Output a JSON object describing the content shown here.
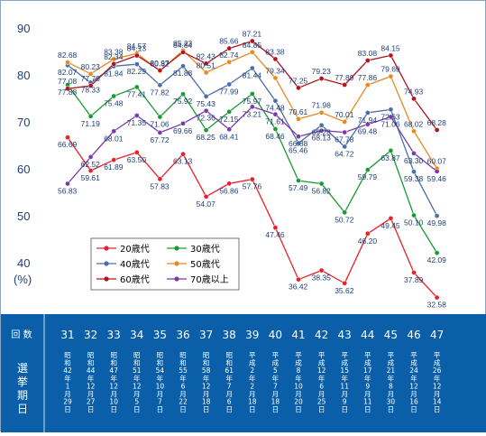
{
  "chart_data": {
    "type": "line",
    "ylabel": "(%)",
    "ylim": [
      30,
      90
    ],
    "yticks": [
      40,
      50,
      60,
      70,
      80,
      90
    ],
    "grid": false,
    "legend_position": "lower-left",
    "categories": [
      "31",
      "32",
      "33",
      "34",
      "35",
      "36",
      "37",
      "38",
      "39",
      "40",
      "41",
      "42",
      "43",
      "44",
      "45",
      "46",
      "47"
    ],
    "series": [
      {
        "name": "20歳代",
        "color": "#e8202a",
        "values": [
          66.69,
          59.61,
          61.89,
          63.5,
          57.83,
          63.13,
          54.07,
          56.86,
          57.76,
          47.46,
          36.42,
          38.35,
          35.62,
          46.2,
          49.45,
          37.89,
          32.58
        ]
      },
      {
        "name": "30歳代",
        "color": "#1a9a33",
        "values": [
          77.88,
          71.19,
          75.48,
          77.41,
          71.06,
          75.92,
          68.25,
          72.15,
          75.97,
          68.46,
          57.49,
          56.82,
          50.72,
          59.79,
          63.87,
          50.1,
          42.09
        ]
      },
      {
        "name": "40歳代",
        "color": "#4a6ea8",
        "values": [
          82.07,
          78.33,
          81.84,
          82.29,
          77.82,
          81.88,
          75.43,
          77.99,
          81.44,
          74.48,
          65.46,
          69.28,
          64.72,
          71.94,
          72.63,
          59.38,
          49.98
        ]
      },
      {
        "name": "50歳代",
        "color": "#e88a20",
        "values": [
          82.68,
          80.23,
          83.38,
          84.57,
          80.82,
          85.23,
          80.51,
          82.74,
          84.85,
          79.34,
          70.61,
          71.98,
          70.01,
          77.86,
          79.69,
          68.02,
          60.07
        ]
      },
      {
        "name": "60歳代",
        "color": "#b0151e",
        "values": [
          77.08,
          77.7,
          82.34,
          84.13,
          80.97,
          84.84,
          82.43,
          85.66,
          87.21,
          83.38,
          77.25,
          79.23,
          77.89,
          83.08,
          84.15,
          74.93,
          68.28
        ]
      },
      {
        "name": "70歳以上",
        "color": "#7a3aa8",
        "values": [
          56.83,
          62.52,
          68.01,
          71.35,
          67.72,
          69.66,
          72.36,
          68.41,
          73.21,
          71.61,
          66.88,
          68.13,
          67.78,
          69.48,
          71.06,
          63.3,
          59.46
        ]
      }
    ],
    "label_color": "#1f3f7a"
  },
  "table": {
    "row1_label": "回数",
    "row2_label": "選挙期日",
    "kaisu": [
      "31",
      "32",
      "33",
      "34",
      "35",
      "36",
      "37",
      "38",
      "39",
      "40",
      "41",
      "42",
      "43",
      "44",
      "45",
      "46",
      "47"
    ],
    "dates": [
      "昭和42年1月29日",
      "昭和44年12月27日",
      "昭和47年12月10日",
      "昭和51年12月5日",
      "昭和54年10月7日",
      "昭和55年6月22日",
      "昭和58年12月18日",
      "昭和61年7月6日",
      "平成2年2月18日",
      "平成5年7月18日",
      "平成8年10月20日",
      "平成12年6月25日",
      "平成15年11月9日",
      "平成17年9月11日",
      "平成21年8月30日",
      "平成24年12月16日",
      "平成26年12月14日"
    ],
    "bg_color": "#0a5fa8"
  }
}
